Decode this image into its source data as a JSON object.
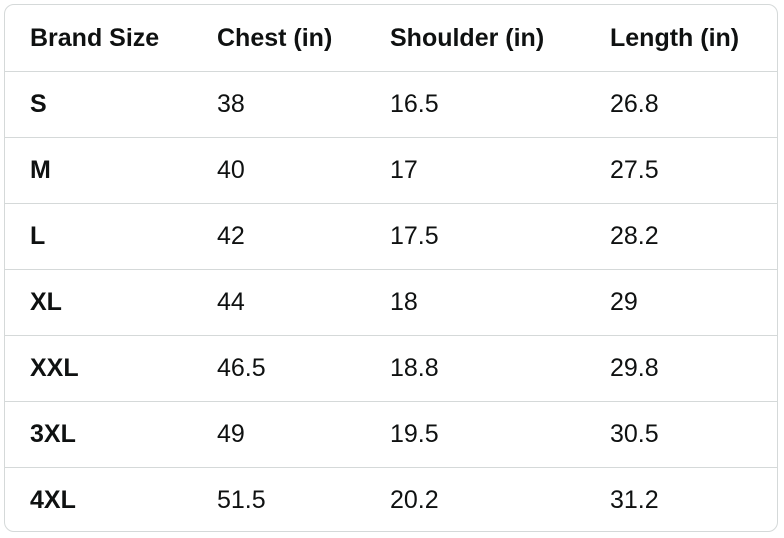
{
  "table": {
    "headers": [
      "Brand Size",
      "Chest (in)",
      "Shoulder (in)",
      "Length (in)"
    ],
    "rows": [
      [
        "S",
        "38",
        "16.5",
        "26.8"
      ],
      [
        "M",
        "40",
        "17",
        "27.5"
      ],
      [
        "L",
        "42",
        "17.5",
        "28.2"
      ],
      [
        "XL",
        "44",
        "18",
        "29"
      ],
      [
        "XXL",
        "46.5",
        "18.8",
        "29.8"
      ],
      [
        "3XL",
        "49",
        "19.5",
        "30.5"
      ],
      [
        "4XL",
        "51.5",
        "20.2",
        "31.2"
      ]
    ]
  }
}
